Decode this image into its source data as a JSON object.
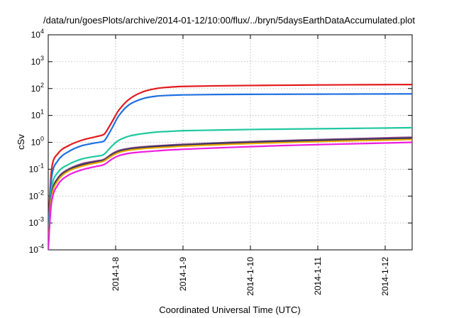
{
  "chart_data": {
    "type": "line",
    "title": "/data/run/goesPlots/archive/2014-01-12/10:00/flux/../bryn/5daysEarthDataAccumulated.plot",
    "xlabel": "Coordinated Universal Time (UTC)",
    "ylabel": "cSv",
    "yscale": "log",
    "ylim": [
      0.0001,
      10000
    ],
    "xlim": [
      0,
      5.4
    ],
    "x_ticks": [
      {
        "x": 1,
        "label": "2014-1-8"
      },
      {
        "x": 2,
        "label": "2014-1-9"
      },
      {
        "x": 3,
        "label": "2014-1-10"
      },
      {
        "x": 4,
        "label": "2014-1-11"
      },
      {
        "x": 5,
        "label": "2014-1-12"
      }
    ],
    "y_ticks": [
      {
        "value": 0.0001,
        "base": "10",
        "exp": "-4"
      },
      {
        "value": 0.001,
        "base": "10",
        "exp": "-3"
      },
      {
        "value": 0.01,
        "base": "10",
        "exp": "-2"
      },
      {
        "value": 0.1,
        "base": "10",
        "exp": "-1"
      },
      {
        "value": 1,
        "base": "10",
        "exp": "0"
      },
      {
        "value": 10,
        "base": "10",
        "exp": "1"
      },
      {
        "value": 100,
        "base": "10",
        "exp": "2"
      },
      {
        "value": 1000,
        "base": "10",
        "exp": "3"
      },
      {
        "value": 10000,
        "base": "10",
        "exp": "4"
      }
    ],
    "grid": true,
    "series": [
      {
        "color": "#e31a1c",
        "x": [
          0,
          0.05,
          0.15,
          0.3,
          0.5,
          0.7,
          0.8,
          0.85,
          0.95,
          1.05,
          1.2,
          1.4,
          1.6,
          1.8,
          2.0,
          2.5,
          3,
          3.5,
          4,
          4.5,
          5,
          5.4
        ],
        "y": [
          0.0005,
          0.1,
          0.4,
          0.75,
          1.2,
          1.6,
          1.85,
          2.3,
          6,
          16,
          40,
          75,
          100,
          113,
          120,
          126,
          130,
          133,
          136,
          138,
          140,
          141
        ]
      },
      {
        "color": "#1f6fe0",
        "x": [
          0,
          0.05,
          0.15,
          0.3,
          0.5,
          0.7,
          0.8,
          0.85,
          0.95,
          1.05,
          1.2,
          1.4,
          1.6,
          1.8,
          2.0,
          2.5,
          3,
          3.5,
          4,
          4.5,
          5,
          5.4
        ],
        "y": [
          0.0003,
          0.05,
          0.22,
          0.45,
          0.75,
          0.95,
          1.05,
          1.3,
          3.5,
          10,
          25,
          42,
          52,
          56,
          58,
          60,
          61,
          61.5,
          62,
          62.5,
          63,
          63.5
        ]
      },
      {
        "color": "#20c8a0",
        "x": [
          0,
          0.05,
          0.15,
          0.3,
          0.5,
          0.7,
          0.8,
          0.85,
          0.95,
          1.05,
          1.2,
          1.4,
          1.6,
          1.8,
          2.0,
          2.5,
          3,
          3.5,
          4,
          4.5,
          5,
          5.4
        ],
        "y": [
          0.0002,
          0.02,
          0.08,
          0.15,
          0.24,
          0.3,
          0.33,
          0.4,
          0.75,
          1.2,
          1.7,
          2.1,
          2.4,
          2.55,
          2.7,
          2.85,
          3.0,
          3.1,
          3.2,
          3.3,
          3.4,
          3.5
        ]
      },
      {
        "color": "#9a3a9a",
        "x": [
          0,
          0.05,
          0.15,
          0.3,
          0.5,
          0.7,
          0.8,
          0.85,
          0.95,
          1.05,
          1.2,
          1.4,
          1.6,
          1.8,
          2.0,
          2.5,
          3,
          3.5,
          4,
          4.5,
          5,
          5.4
        ],
        "y": [
          0.00015,
          0.012,
          0.05,
          0.1,
          0.16,
          0.2,
          0.22,
          0.25,
          0.38,
          0.5,
          0.6,
          0.68,
          0.74,
          0.79,
          0.84,
          0.95,
          1.06,
          1.16,
          1.26,
          1.36,
          1.46,
          1.55
        ]
      },
      {
        "color": "#5a5a5a",
        "x": [
          0,
          0.05,
          0.15,
          0.3,
          0.5,
          0.7,
          0.8,
          0.85,
          0.95,
          1.05,
          1.2,
          1.4,
          1.6,
          1.8,
          2.0,
          2.5,
          3,
          3.5,
          4,
          4.5,
          5,
          5.4
        ],
        "y": [
          0.00014,
          0.011,
          0.047,
          0.095,
          0.15,
          0.19,
          0.21,
          0.24,
          0.36,
          0.47,
          0.57,
          0.65,
          0.71,
          0.76,
          0.81,
          0.92,
          1.02,
          1.12,
          1.21,
          1.3,
          1.39,
          1.48
        ]
      },
      {
        "color": "#1a1a78",
        "x": [
          0,
          0.05,
          0.15,
          0.3,
          0.5,
          0.7,
          0.8,
          0.85,
          0.95,
          1.05,
          1.2,
          1.4,
          1.6,
          1.8,
          2.0,
          2.5,
          3,
          3.5,
          4,
          4.5,
          5,
          5.4
        ],
        "y": [
          0.00013,
          0.01,
          0.044,
          0.09,
          0.14,
          0.18,
          0.2,
          0.23,
          0.34,
          0.44,
          0.54,
          0.62,
          0.68,
          0.72,
          0.77,
          0.87,
          0.96,
          1.05,
          1.14,
          1.22,
          1.3,
          1.38
        ]
      },
      {
        "color": "#e8a800",
        "x": [
          0,
          0.05,
          0.15,
          0.3,
          0.5,
          0.7,
          0.8,
          0.85,
          0.95,
          1.05,
          1.2,
          1.4,
          1.6,
          1.8,
          2.0,
          2.5,
          3,
          3.5,
          4,
          4.5,
          5,
          5.4
        ],
        "y": [
          0.00012,
          0.009,
          0.04,
          0.085,
          0.13,
          0.17,
          0.19,
          0.22,
          0.32,
          0.42,
          0.51,
          0.58,
          0.63,
          0.67,
          0.72,
          0.81,
          0.9,
          0.98,
          1.06,
          1.14,
          1.21,
          1.28
        ]
      },
      {
        "color": "#ee1ee0",
        "x": [
          0,
          0.05,
          0.15,
          0.3,
          0.5,
          0.7,
          0.8,
          0.85,
          0.95,
          1.05,
          1.2,
          1.4,
          1.6,
          1.8,
          2.0,
          2.5,
          3,
          3.5,
          4,
          4.5,
          5,
          5.4
        ],
        "y": [
          0.0001,
          0.006,
          0.028,
          0.06,
          0.095,
          0.125,
          0.14,
          0.16,
          0.24,
          0.32,
          0.39,
          0.44,
          0.48,
          0.52,
          0.55,
          0.62,
          0.69,
          0.76,
          0.82,
          0.88,
          0.94,
          1.0
        ]
      }
    ]
  }
}
